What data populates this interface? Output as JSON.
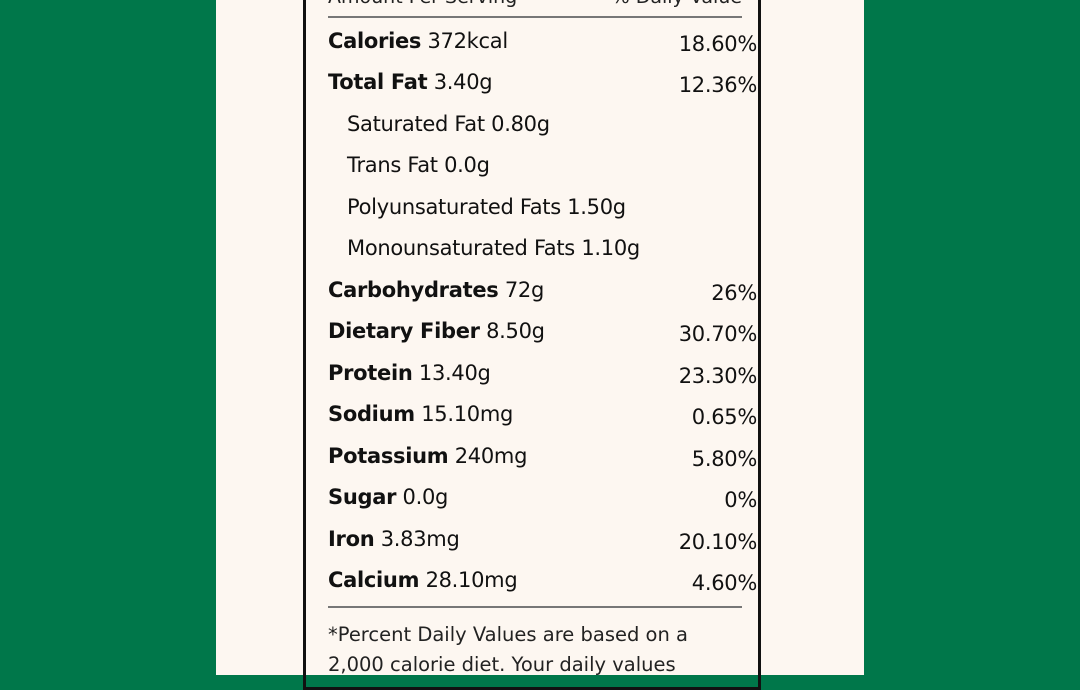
{
  "colors": {
    "background": "#00774a",
    "panel": "#fdf7f1"
  },
  "header": {
    "left": "Amount Per Serving",
    "right": "% Daily Value"
  },
  "rows": [
    {
      "name": "Calories",
      "amount": "372kcal",
      "dv": "18.60%"
    },
    {
      "name": "Total Fat",
      "amount": "3.40g",
      "dv": "12.36%"
    },
    {
      "name": "",
      "amount": "Saturated Fat 0.80g",
      "dv": "",
      "sub": true
    },
    {
      "name": "",
      "amount": "Trans Fat 0.0g",
      "dv": "",
      "sub": true
    },
    {
      "name": "",
      "amount": "Polyunsaturated Fats 1.50g",
      "dv": "",
      "sub": true
    },
    {
      "name": "",
      "amount": "Monounsaturated Fats 1.10g",
      "dv": "",
      "sub": true
    },
    {
      "name": "Carbohydrates",
      "amount": "72g",
      "dv": "26%"
    },
    {
      "name": "Dietary Fiber",
      "amount": "8.50g",
      "dv": "30.70%"
    },
    {
      "name": "Protein",
      "amount": "13.40g",
      "dv": "23.30%"
    },
    {
      "name": "Sodium",
      "amount": "15.10mg",
      "dv": "0.65%"
    },
    {
      "name": "Potassium",
      "amount": "240mg",
      "dv": "5.80%"
    },
    {
      "name": "Sugar",
      "amount": "0.0g",
      "dv": "0%"
    },
    {
      "name": "Iron",
      "amount": "3.83mg",
      "dv": "20.10%"
    },
    {
      "name": "Calcium",
      "amount": "28.10mg",
      "dv": "4.60%"
    }
  ],
  "footnote": "*Percent Daily Values are based on a 2,000 calorie diet. Your daily values"
}
